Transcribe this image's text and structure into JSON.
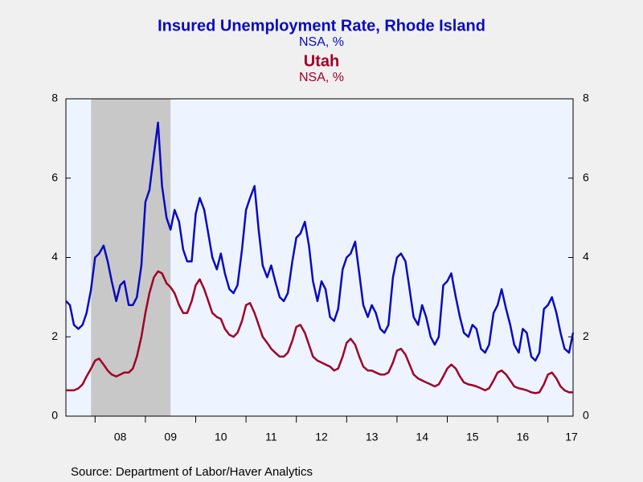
{
  "chart_data": {
    "type": "line",
    "source": "Source:  Department of Labor/Haver Analytics",
    "x": [
      2007.42,
      2007.5,
      2007.58,
      2007.67,
      2007.75,
      2007.83,
      2007.92,
      2008,
      2008.08,
      2008.17,
      2008.25,
      2008.33,
      2008.42,
      2008.5,
      2008.58,
      2008.67,
      2008.75,
      2008.83,
      2008.92,
      2009,
      2009.08,
      2009.17,
      2009.25,
      2009.33,
      2009.42,
      2009.5,
      2009.58,
      2009.67,
      2009.75,
      2009.83,
      2009.92,
      2010,
      2010.08,
      2010.17,
      2010.25,
      2010.33,
      2010.42,
      2010.5,
      2010.58,
      2010.67,
      2010.75,
      2010.83,
      2010.92,
      2011,
      2011.08,
      2011.17,
      2011.25,
      2011.33,
      2011.42,
      2011.5,
      2011.58,
      2011.67,
      2011.75,
      2011.83,
      2011.92,
      2012,
      2012.08,
      2012.17,
      2012.25,
      2012.33,
      2012.42,
      2012.5,
      2012.58,
      2012.67,
      2012.75,
      2012.83,
      2012.92,
      2013,
      2013.08,
      2013.17,
      2013.25,
      2013.33,
      2013.42,
      2013.5,
      2013.58,
      2013.67,
      2013.75,
      2013.83,
      2013.92,
      2014,
      2014.08,
      2014.17,
      2014.25,
      2014.33,
      2014.42,
      2014.5,
      2014.58,
      2014.67,
      2014.75,
      2014.83,
      2014.92,
      2015,
      2015.08,
      2015.17,
      2015.25,
      2015.33,
      2015.42,
      2015.5,
      2015.58,
      2015.67,
      2015.75,
      2015.83,
      2015.92,
      2016,
      2016.08,
      2016.17,
      2016.25,
      2016.33,
      2016.42,
      2016.5,
      2016.58,
      2016.67,
      2016.75,
      2016.83,
      2016.92,
      2017,
      2017.08,
      2017.17,
      2017.25,
      2017.33,
      2017.42,
      2017.5
    ],
    "series": [
      {
        "name": "Insured Unemployment Rate, Rhode Island",
        "unit": "NSA, %",
        "color": "#0a0ac0",
        "values": [
          2.9,
          2.8,
          2.3,
          2.2,
          2.3,
          2.6,
          3.2,
          4.0,
          4.1,
          4.3,
          3.9,
          3.4,
          2.9,
          3.3,
          3.4,
          2.8,
          2.8,
          3.0,
          3.8,
          5.4,
          5.7,
          6.6,
          7.4,
          5.8,
          5.0,
          4.7,
          5.2,
          4.9,
          4.2,
          3.9,
          3.9,
          5.1,
          5.5,
          5.2,
          4.6,
          4.0,
          3.7,
          4.1,
          3.6,
          3.2,
          3.1,
          3.3,
          4.2,
          5.2,
          5.5,
          5.8,
          4.7,
          3.8,
          3.5,
          3.8,
          3.4,
          3.0,
          2.9,
          3.1,
          3.9,
          4.5,
          4.6,
          4.9,
          4.3,
          3.4,
          2.9,
          3.4,
          3.2,
          2.5,
          2.4,
          2.7,
          3.7,
          4.0,
          4.1,
          4.4,
          3.6,
          2.8,
          2.5,
          2.8,
          2.6,
          2.2,
          2.1,
          2.3,
          3.5,
          4.0,
          4.1,
          3.9,
          3.2,
          2.5,
          2.3,
          2.8,
          2.5,
          2.0,
          1.8,
          2.0,
          3.3,
          3.4,
          3.6,
          3.0,
          2.5,
          2.1,
          2.0,
          2.3,
          2.2,
          1.7,
          1.6,
          1.8,
          2.6,
          2.8,
          3.2,
          2.7,
          2.3,
          1.8,
          1.6,
          2.2,
          2.1,
          1.5,
          1.4,
          1.6,
          2.7,
          2.8,
          3.0,
          2.6,
          2.1,
          1.7,
          1.6,
          2.1
        ]
      },
      {
        "name": "Utah",
        "unit": "NSA, %",
        "color": "#a00028",
        "axis": "y2",
        "values": [
          0.65,
          0.65,
          0.65,
          0.7,
          0.8,
          1.0,
          1.2,
          1.4,
          1.45,
          1.3,
          1.15,
          1.05,
          1.0,
          1.05,
          1.1,
          1.1,
          1.2,
          1.5,
          2.0,
          2.6,
          3.1,
          3.5,
          3.65,
          3.6,
          3.35,
          3.25,
          3.1,
          2.8,
          2.6,
          2.6,
          2.9,
          3.3,
          3.45,
          3.2,
          2.9,
          2.6,
          2.5,
          2.45,
          2.2,
          2.05,
          2.0,
          2.1,
          2.4,
          2.8,
          2.85,
          2.6,
          2.3,
          2.0,
          1.85,
          1.7,
          1.6,
          1.5,
          1.5,
          1.6,
          1.9,
          2.25,
          2.3,
          2.1,
          1.8,
          1.5,
          1.4,
          1.35,
          1.3,
          1.25,
          1.15,
          1.2,
          1.5,
          1.85,
          1.95,
          1.8,
          1.5,
          1.25,
          1.15,
          1.15,
          1.1,
          1.05,
          1.05,
          1.1,
          1.35,
          1.65,
          1.7,
          1.55,
          1.3,
          1.05,
          0.95,
          0.9,
          0.85,
          0.8,
          0.75,
          0.8,
          1.0,
          1.2,
          1.3,
          1.2,
          1.0,
          0.85,
          0.8,
          0.78,
          0.75,
          0.7,
          0.65,
          0.7,
          0.9,
          1.1,
          1.15,
          1.05,
          0.9,
          0.75,
          0.7,
          0.68,
          0.65,
          0.6,
          0.58,
          0.6,
          0.8,
          1.05,
          1.1,
          0.95,
          0.75,
          0.65,
          0.6,
          0.6
        ]
      }
    ],
    "shaded": [
      {
        "start": 2007.92,
        "end": 2009.5
      }
    ],
    "xlim": [
      2007.42,
      2017.5
    ],
    "xticks": [
      {
        "value": 2008.5,
        "label": "08"
      },
      {
        "value": 2009.5,
        "label": "09"
      },
      {
        "value": 2010.5,
        "label": "10"
      },
      {
        "value": 2011.5,
        "label": "11"
      },
      {
        "value": 2012.5,
        "label": "12"
      },
      {
        "value": 2013.5,
        "label": "13"
      },
      {
        "value": 2014.5,
        "label": "14"
      },
      {
        "value": 2015.5,
        "label": "15"
      },
      {
        "value": 2016.5,
        "label": "16"
      },
      {
        "value": 2017.5,
        "label": "17"
      }
    ],
    "ylim": [
      0,
      8
    ],
    "yticks": [
      0,
      2,
      4,
      6,
      8
    ],
    "y2lim": [
      0,
      8
    ],
    "y2ticks": [
      0,
      2,
      4,
      6,
      8
    ]
  }
}
